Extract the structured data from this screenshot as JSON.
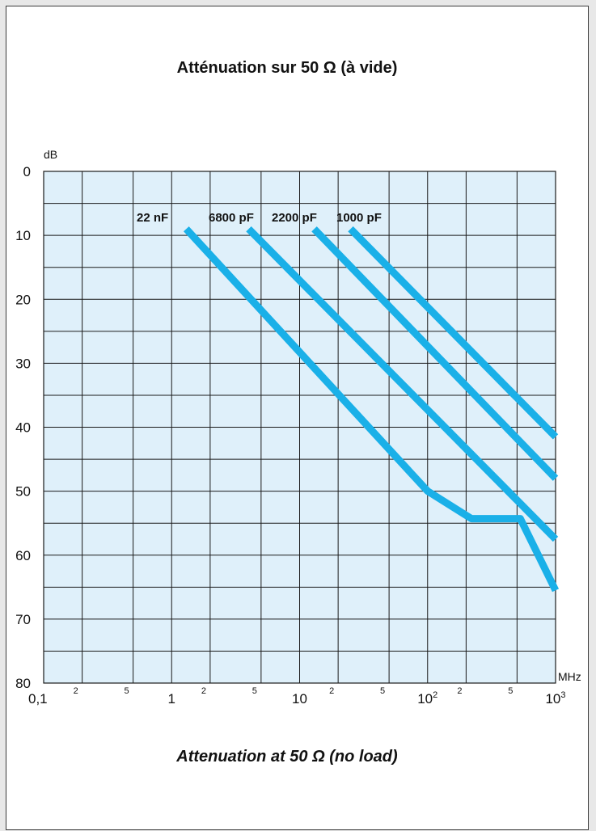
{
  "chart_data": {
    "type": "line",
    "title": "Atténuation sur 50 Ω (à vide)",
    "subtitle": "Attenuation at 50 Ω (no load)",
    "ylabel": "dB",
    "xlabel": "MHz",
    "x_scale": "log",
    "xlim": [
      0.1,
      1000
    ],
    "ylim": [
      0,
      80
    ],
    "y_inverted": true,
    "grid": true,
    "y_ticks": [
      {
        "value": 0,
        "label": "0"
      },
      {
        "value": 10,
        "label": "10"
      },
      {
        "value": 20,
        "label": "20"
      },
      {
        "value": 30,
        "label": "30"
      },
      {
        "value": 40,
        "label": "40"
      },
      {
        "value": 50,
        "label": "50"
      },
      {
        "value": 60,
        "label": "60"
      },
      {
        "value": 70,
        "label": "70"
      },
      {
        "value": 80,
        "label": "80"
      }
    ],
    "x_major_ticks": [
      {
        "value": 0.1,
        "base": "0,1",
        "exp": ""
      },
      {
        "value": 1,
        "base": "1",
        "exp": ""
      },
      {
        "value": 10,
        "base": "10",
        "exp": ""
      },
      {
        "value": 100,
        "base": "10",
        "exp": "2"
      },
      {
        "value": 1000,
        "base": "10",
        "exp": "3"
      }
    ],
    "x_minor_ticks": [
      {
        "value": 0.2,
        "label": "2"
      },
      {
        "value": 0.5,
        "label": "5"
      },
      {
        "value": 2,
        "label": "2"
      },
      {
        "value": 5,
        "label": "5"
      },
      {
        "value": 20,
        "label": "2"
      },
      {
        "value": 50,
        "label": "5"
      },
      {
        "value": 200,
        "label": "2"
      },
      {
        "value": 500,
        "label": "5"
      }
    ],
    "x_gridlines": [
      0.1,
      0.2,
      0.5,
      1,
      2,
      5,
      10,
      20,
      50,
      100,
      200,
      500,
      1000
    ],
    "series_color": "#1ab0e8",
    "plot_bg": "#dff0fa",
    "series": [
      {
        "name": "22 nF",
        "points": [
          [
            1.3,
            9
          ],
          [
            100,
            50
          ],
          [
            220,
            54.3
          ],
          [
            530,
            54.3
          ],
          [
            1000,
            65.5
          ]
        ]
      },
      {
        "name": "6800 pF",
        "points": [
          [
            4,
            9
          ],
          [
            1000,
            57.5
          ]
        ]
      },
      {
        "name": "2200 pF",
        "points": [
          [
            13,
            9
          ],
          [
            1000,
            48
          ]
        ]
      },
      {
        "name": "1000 pF",
        "points": [
          [
            25,
            9
          ],
          [
            1000,
            41.5
          ]
        ]
      }
    ]
  }
}
